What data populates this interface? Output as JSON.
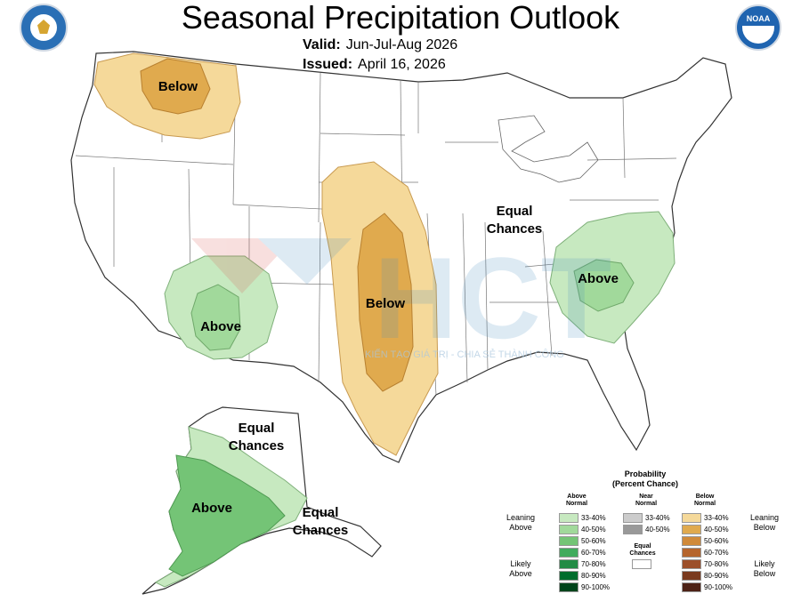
{
  "header": {
    "title": "Seasonal Precipitation Outlook",
    "valid_label": "Valid:",
    "valid_value": "Jun-Jul-Aug 2026",
    "issued_label": "Issued:",
    "issued_value": "April 16, 2026"
  },
  "map_labels": {
    "northwest": "Below",
    "plains": "Below",
    "southwest": "Above",
    "southeast": "Above",
    "east_line1": "Equal",
    "east_line2": "Chances",
    "alaska_north_line1": "Equal",
    "alaska_north_line2": "Chances",
    "alaska_south": "Above",
    "alaska_east_line1": "Equal",
    "alaska_east_line2": "Chances"
  },
  "watermark": {
    "text": "KIẾN TẠO GIÁ TRỊ - CHIA SẺ THÀNH CÔNG"
  },
  "legend": {
    "title_line1": "Probability",
    "title_line2": "(Percent Chance)",
    "above_header": "Above Normal",
    "near_header": "Near Normal",
    "below_header": "Below Normal",
    "above_ranges": [
      "33-40%",
      "40-50%",
      "50-60%",
      "60-70%",
      "70-80%",
      "80-90%",
      "90-100%"
    ],
    "near_ranges": [
      "33-40%",
      "40-50%"
    ],
    "below_ranges": [
      "33-40%",
      "40-50%",
      "50-60%",
      "60-70%",
      "70-80%",
      "80-90%",
      "90-100%"
    ],
    "equal_chances_label": "Equal Chances",
    "leaning_above": "Leaning Above",
    "likely_above": "Likely Above",
    "leaning_below": "Leaning Below",
    "likely_below": "Likely Below",
    "above_colors": [
      "#c7e9c0",
      "#a1d99b",
      "#74c476",
      "#41ab5d",
      "#238b45",
      "#006d2c",
      "#00441b"
    ],
    "near_colors": [
      "#cccccc",
      "#999999"
    ],
    "below_colors": [
      "#f5d99a",
      "#e0aa4e",
      "#d08a3a",
      "#b5652d",
      "#9c4f2a",
      "#7a3a1e",
      "#4d2216"
    ]
  },
  "logos": {
    "left": "department-of-commerce-seal",
    "right": "noaa-logo"
  }
}
